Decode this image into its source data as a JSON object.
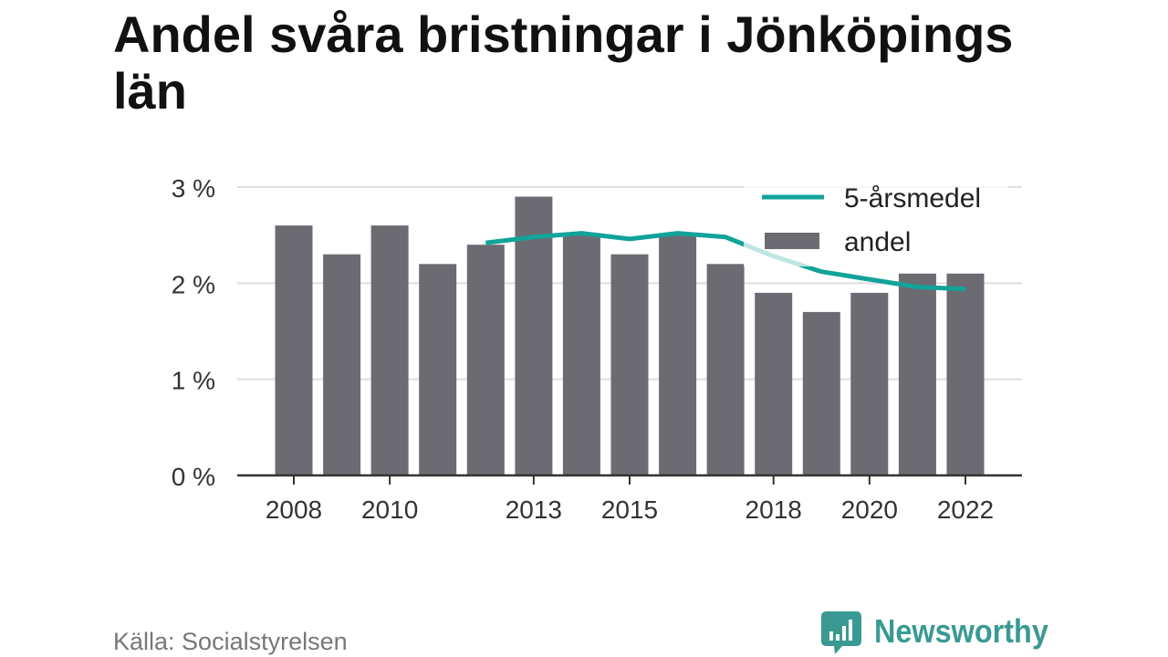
{
  "chart_data": {
    "type": "bar",
    "title": "Andel svåra bristningar i Jönköpings län",
    "x": [
      2008,
      2009,
      2010,
      2011,
      2012,
      2013,
      2014,
      2015,
      2016,
      2017,
      2018,
      2019,
      2020,
      2021,
      2022
    ],
    "x_ticks": [
      {
        "value": 2008,
        "label": "2008"
      },
      {
        "value": 2010,
        "label": "2010"
      },
      {
        "value": 2013,
        "label": "2013"
      },
      {
        "value": 2015,
        "label": "2015"
      },
      {
        "value": 2018,
        "label": "2018"
      },
      {
        "value": 2020,
        "label": "2020"
      },
      {
        "value": 2022,
        "label": "2022"
      }
    ],
    "y_ticks": [
      {
        "value": 0,
        "label": "0 %"
      },
      {
        "value": 1,
        "label": "1 %"
      },
      {
        "value": 2,
        "label": "2 %"
      },
      {
        "value": 3,
        "label": "3 %"
      }
    ],
    "ylim": [
      0,
      3
    ],
    "grid": true,
    "legend_position": "top-right",
    "series": [
      {
        "name": "5-årsmedel",
        "type": "line",
        "color": "#12a399",
        "values": [
          null,
          null,
          null,
          null,
          2.42,
          2.48,
          2.52,
          2.46,
          2.52,
          2.48,
          2.28,
          2.12,
          2.04,
          1.96,
          1.94
        ]
      },
      {
        "name": "andel",
        "type": "bar",
        "color": "#6c6b72",
        "values": [
          2.6,
          2.3,
          2.6,
          2.2,
          2.4,
          2.9,
          2.5,
          2.3,
          2.5,
          2.2,
          1.9,
          1.7,
          1.9,
          2.1,
          2.1
        ]
      }
    ]
  },
  "source": "Källa: Socialstyrelsen",
  "brand": {
    "name": "Newsworthy",
    "color": "#3a9a93",
    "icon": "newsworthy-chart-bubble-icon"
  }
}
